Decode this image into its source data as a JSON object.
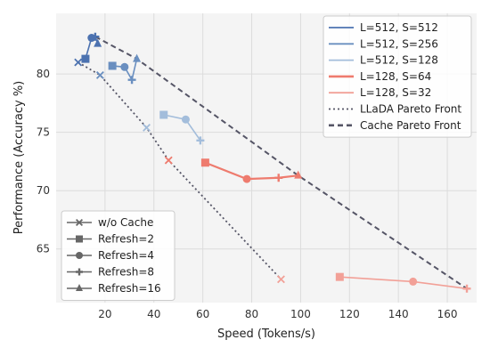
{
  "chart_data": {
    "type": "scatter",
    "xlabel": "Speed (Tokens/s)",
    "ylabel": "Performance (Accuracy %)",
    "xlim": [
      0,
      172
    ],
    "ylim": [
      60.4,
      85.2
    ],
    "xticks": [
      "20",
      "40",
      "60",
      "80",
      "100",
      "120",
      "140",
      "160"
    ],
    "yticks": [
      "65",
      "70",
      "75",
      "80"
    ],
    "grid": true,
    "legend_top_right": [
      {
        "label": "L=512, S=512",
        "color": "#4c72b0",
        "style": "solid",
        "width": "normal"
      },
      {
        "label": "L=512, S=256",
        "color": "#6a8fc0",
        "style": "solid",
        "width": "normal"
      },
      {
        "label": "L=512, S=128",
        "color": "#a3bddb",
        "style": "solid",
        "width": "normal"
      },
      {
        "label": "L=128, S=64",
        "color": "#ee7b6e",
        "style": "solid",
        "width": "thick"
      },
      {
        "label": "L=128, S=32",
        "color": "#f2a097",
        "style": "solid",
        "width": "normal"
      },
      {
        "label": "LLaDA Pareto Front",
        "color": "#555566",
        "style": "dotted",
        "width": "normal"
      },
      {
        "label": "Cache Pareto Front",
        "color": "#555566",
        "style": "dashed",
        "width": "thick"
      }
    ],
    "legend_bottom_left": [
      {
        "label": "w/o Cache",
        "marker": "x"
      },
      {
        "label": "Refresh=2",
        "marker": "square"
      },
      {
        "label": "Refresh=4",
        "marker": "circle"
      },
      {
        "label": "Refresh=8",
        "marker": "plus"
      },
      {
        "label": "Refresh=16",
        "marker": "triangle"
      }
    ],
    "series": [
      {
        "name": "L=512, S=512",
        "color": "#4c72b0",
        "line": true,
        "points": [
          {
            "x": 12,
            "y": 81.3,
            "marker": "square"
          },
          {
            "x": 14.5,
            "y": 83.1,
            "marker": "circle"
          },
          {
            "x": 16,
            "y": 83.2,
            "marker": "plus"
          },
          {
            "x": 17,
            "y": 82.6,
            "marker": "triangle"
          }
        ]
      },
      {
        "name": "L=512, S=256",
        "color": "#6a8fc0",
        "line": true,
        "points": [
          {
            "x": 23,
            "y": 80.7,
            "marker": "square"
          },
          {
            "x": 28,
            "y": 80.6,
            "marker": "circle"
          },
          {
            "x": 31,
            "y": 79.5,
            "marker": "plus"
          },
          {
            "x": 33,
            "y": 81.3,
            "marker": "triangle"
          }
        ]
      },
      {
        "name": "L=512, S=128",
        "color": "#a3bddb",
        "line": true,
        "points": [
          {
            "x": 44,
            "y": 76.5,
            "marker": "square"
          },
          {
            "x": 53,
            "y": 76.1,
            "marker": "circle"
          },
          {
            "x": 59,
            "y": 74.3,
            "marker": "plus"
          }
        ]
      },
      {
        "name": "L=128, S=64",
        "color": "#ee7b6e",
        "line": true,
        "points": [
          {
            "x": 61,
            "y": 72.4,
            "marker": "square"
          },
          {
            "x": 78,
            "y": 71.0,
            "marker": "circle"
          },
          {
            "x": 91,
            "y": 71.1,
            "marker": "plus"
          },
          {
            "x": 99,
            "y": 71.3,
            "marker": "triangle"
          }
        ]
      },
      {
        "name": "L=128, S=32",
        "color": "#f2a097",
        "line": true,
        "points": [
          {
            "x": 116,
            "y": 62.6,
            "marker": "square"
          },
          {
            "x": 146,
            "y": 62.2,
            "marker": "circle"
          },
          {
            "x": 168,
            "y": 61.6,
            "marker": "plus"
          }
        ]
      }
    ],
    "no_cache_points": [
      {
        "x": 9,
        "y": 81.0,
        "color": "#4c72b0"
      },
      {
        "x": 18,
        "y": 79.9,
        "color": "#6a8fc0"
      },
      {
        "x": 37,
        "y": 75.4,
        "color": "#a3bddb"
      },
      {
        "x": 46,
        "y": 72.6,
        "color": "#ee7b6e"
      },
      {
        "x": 92,
        "y": 62.4,
        "color": "#f2a097"
      }
    ],
    "llada_pareto_front": [
      {
        "x": 9,
        "y": 81.0
      },
      {
        "x": 18,
        "y": 79.9
      },
      {
        "x": 37,
        "y": 75.4
      },
      {
        "x": 46,
        "y": 72.6
      },
      {
        "x": 92,
        "y": 62.4
      }
    ],
    "cache_pareto_front": [
      {
        "x": 16,
        "y": 83.2
      },
      {
        "x": 33,
        "y": 81.3
      },
      {
        "x": 99,
        "y": 71.3
      },
      {
        "x": 168,
        "y": 61.6
      }
    ]
  }
}
